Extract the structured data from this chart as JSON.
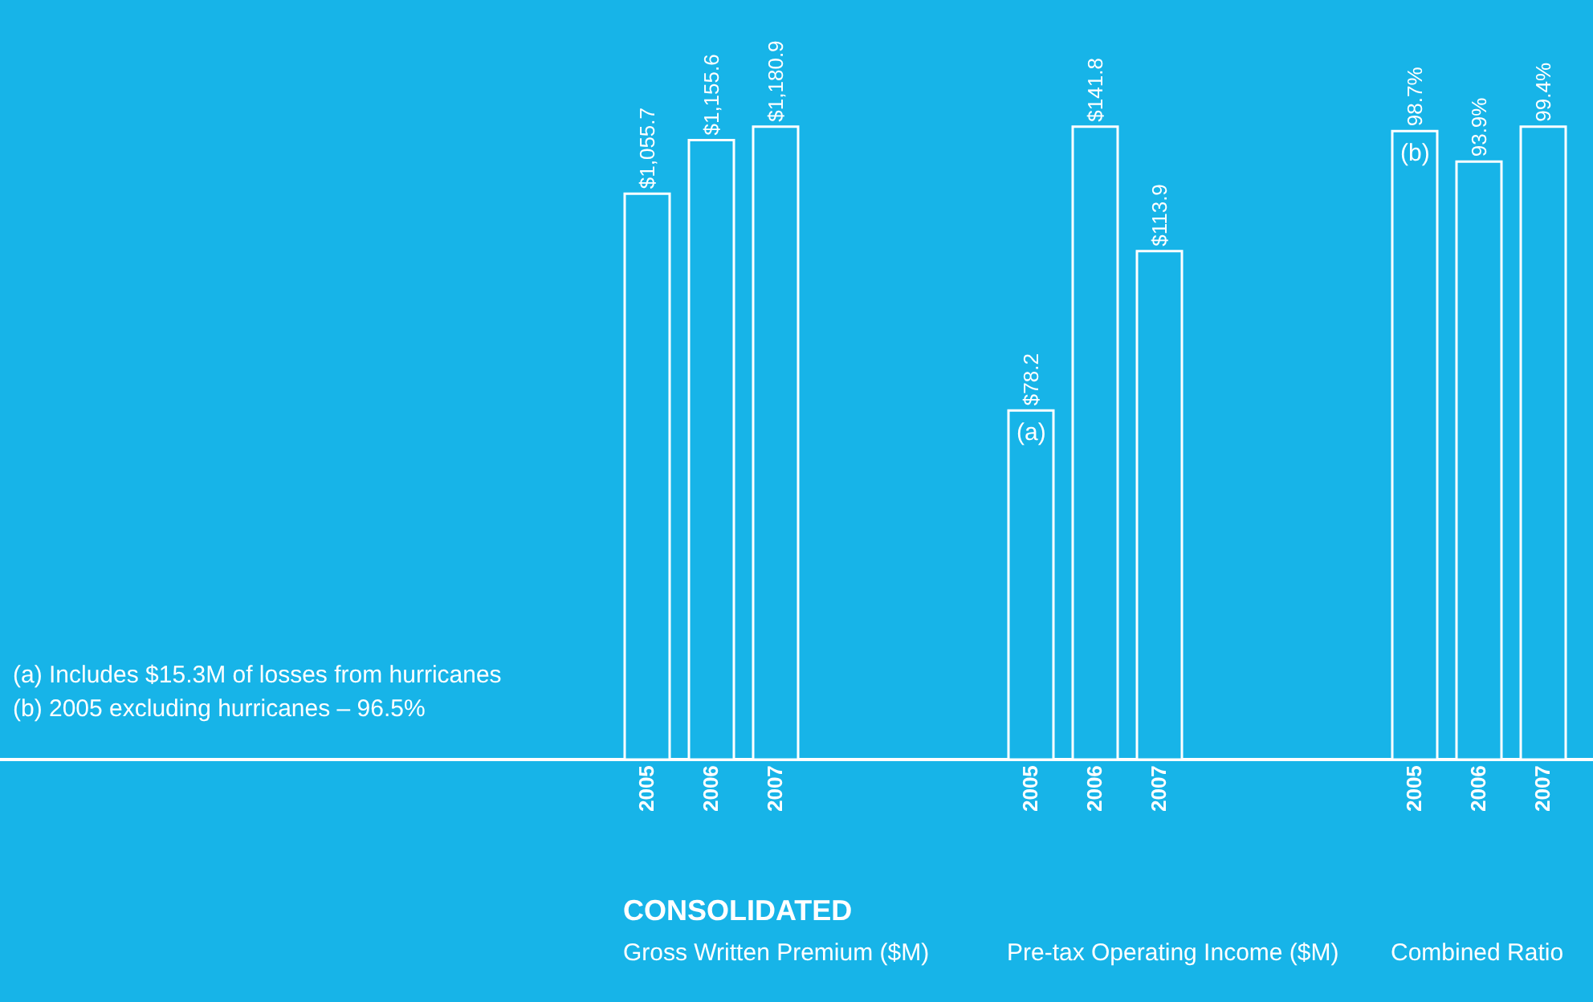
{
  "chart_data": [
    {
      "type": "bar",
      "title": "Gross Written Premium ($M)",
      "categories": [
        "2005",
        "2006",
        "2007"
      ],
      "values": [
        1055.7,
        1155.6,
        1180.9
      ],
      "value_labels": [
        "$1,055.7",
        "$1,155.6",
        "$1,180.9"
      ],
      "color": "#17b4e8",
      "tick_labels": "x",
      "annotations": [
        "CONSOLIDATED",
        "(a)  Includes $15.3M of losses from hurricanes",
        "(b)  2005 excluding hurricanes – 96.5%"
      ]
    },
    {
      "type": "bar",
      "title": "Pre-tax Operating Income ($M)",
      "categories": [
        "2005",
        "2006",
        "2007"
      ],
      "values": [
        78.2,
        141.8,
        113.9
      ],
      "value_labels": [
        "$78.2",
        "$141.8",
        "$113.9"
      ],
      "color": "#17b4e8",
      "tick_labels": "x",
      "annotations": [
        {
          "text": "(a)",
          "x": "2005",
          "y": 78.2
        }
      ]
    },
    {
      "type": "bar",
      "title": "Combined Ratio",
      "categories": [
        "2005",
        "2006",
        "2007"
      ],
      "values": [
        98.7,
        93.9,
        99.4
      ],
      "value_labels": [
        "98.7%",
        "93.9%",
        "99.4%"
      ],
      "color": "#17b4e8",
      "tick_labels": "x",
      "annotations": [
        {
          "text": "(b)",
          "x": "2005",
          "y": 98.7
        }
      ]
    }
  ]
}
